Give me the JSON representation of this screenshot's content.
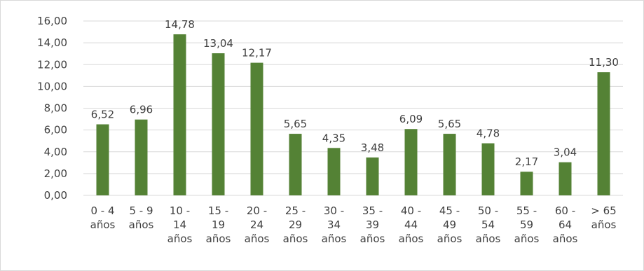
{
  "chart_data": {
    "type": "bar",
    "categories": [
      [
        "0 - 4",
        "años"
      ],
      [
        "5 - 9",
        "años"
      ],
      [
        "10 -",
        "14",
        "años"
      ],
      [
        "15 -",
        "19",
        "años"
      ],
      [
        "20 -",
        "24",
        "años"
      ],
      [
        "25 -",
        "29",
        "años"
      ],
      [
        "30 -",
        "34",
        "años"
      ],
      [
        "35 -",
        "39",
        "años"
      ],
      [
        "40 -",
        "44",
        "años"
      ],
      [
        "45 -",
        "49",
        "años"
      ],
      [
        "50 -",
        "54",
        "años"
      ],
      [
        "55 -",
        "59",
        "años"
      ],
      [
        "60 -",
        "64",
        "años"
      ],
      [
        "> 65",
        "años"
      ]
    ],
    "values": [
      6.52,
      6.96,
      14.78,
      13.04,
      12.17,
      5.65,
      4.35,
      3.48,
      6.09,
      5.65,
      4.78,
      2.17,
      3.04,
      11.3
    ],
    "data_labels": [
      "6,52",
      "6,96",
      "14,78",
      "13,04",
      "12,17",
      "5,65",
      "4,35",
      "3,48",
      "6,09",
      "5,65",
      "4,78",
      "2,17",
      "3,04",
      "11,30"
    ],
    "y_ticks": [
      "0,00",
      "2,00",
      "4,00",
      "6,00",
      "8,00",
      "10,00",
      "12,00",
      "14,00",
      "16,00"
    ],
    "ylim": [
      0,
      16
    ],
    "grid": true,
    "legend": "none",
    "bar_color": "#548235",
    "grid_color": "#d9d9d9",
    "text_color": "#404040"
  }
}
